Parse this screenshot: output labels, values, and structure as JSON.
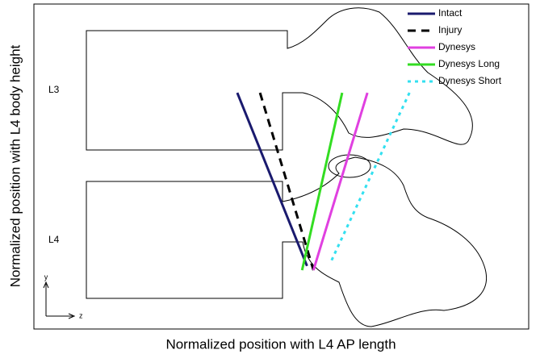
{
  "chart_data": {
    "type": "line",
    "xlabel": "Normalized position with L4 AP length",
    "ylabel": "Normalized position with L4 body height",
    "annotations": [
      "L3",
      "L4",
      "y",
      "z"
    ],
    "xlim": [
      0,
      1
    ],
    "ylim": [
      0,
      1
    ],
    "legend": "upper right",
    "series": [
      {
        "name": "Intact",
        "color": "#1a1a6e",
        "style": "solid",
        "x": [
          0.411,
          0.552
        ],
        "values": [
          0.727,
          0.194
        ]
      },
      {
        "name": "Injury",
        "color": "#000000",
        "style": "dashed",
        "x": [
          0.457,
          0.565
        ],
        "values": [
          0.727,
          0.181
        ]
      },
      {
        "name": "Dynesys",
        "color": "#e040e0",
        "style": "solid",
        "x": [
          0.674,
          0.565
        ],
        "values": [
          0.727,
          0.181
        ]
      },
      {
        "name": "Dynesys Long",
        "color": "#33dd22",
        "style": "solid",
        "x": [
          0.623,
          0.542
        ],
        "values": [
          0.727,
          0.181
        ]
      },
      {
        "name": "Dynesys Short",
        "color": "#33e0f0",
        "style": "dotted",
        "x": [
          0.759,
          0.6
        ],
        "values": [
          0.727,
          0.206
        ]
      }
    ]
  }
}
